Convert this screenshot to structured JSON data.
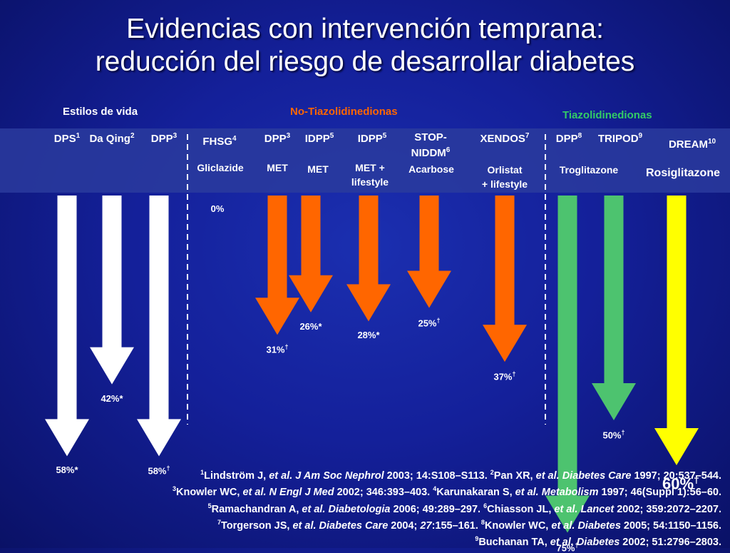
{
  "title": {
    "line1": "Evidencias con intervención temprana:",
    "line2": "reducción del riesgo de desarrollar diabetes"
  },
  "groups": {
    "lifestyle": "Estilos de vida",
    "non_tzd": "No-Tiazolidinedionas",
    "tzd": "Tiazolidinedionas"
  },
  "colors": {
    "lifestyle": "#ffffff",
    "non_tzd": "#ff6600",
    "tzd_green": "#4dc36f",
    "rosiglitazone": "#ffff00",
    "non_tzd_label": "#ff6600",
    "tzd_label": "#33cc66"
  },
  "chart_data": {
    "type": "bar",
    "orientation": "downward-arrows",
    "value_unit": "% reduction in diabetes risk",
    "studies": [
      {
        "name": "DPS",
        "sup": "1",
        "intervention": "",
        "value": 58,
        "label": "58%",
        "mark": "*",
        "color": "lifestyle"
      },
      {
        "name": "Da Qing",
        "sup": "2",
        "intervention": "",
        "value": 42,
        "label": "42%",
        "mark": "*",
        "color": "lifestyle"
      },
      {
        "name": "DPP",
        "sup": "3",
        "intervention": "",
        "value": 58,
        "label": "58%",
        "mark": "†",
        "color": "lifestyle"
      },
      {
        "name": "FHSG",
        "sup": "4",
        "intervention": "Gliclazide",
        "value": 0,
        "label": "0%",
        "mark": "",
        "color": "non_tzd"
      },
      {
        "name": "DPP",
        "sup": "3",
        "intervention": "MET",
        "value": 31,
        "label": "31%",
        "mark": "†",
        "color": "non_tzd"
      },
      {
        "name": "IDPP",
        "sup": "5",
        "intervention": "MET",
        "value": 26,
        "label": "26%",
        "mark": "*",
        "color": "non_tzd"
      },
      {
        "name": "IDPP",
        "sup": "5",
        "intervention": "MET + lifestyle",
        "value": 28,
        "label": "28%",
        "mark": "*",
        "color": "non_tzd"
      },
      {
        "name": "STOP-NIDDM",
        "sup": "6",
        "intervention": "Acarbose",
        "value": 25,
        "label": "25%",
        "mark": "†",
        "color": "non_tzd"
      },
      {
        "name": "XENDOS",
        "sup": "7",
        "intervention": "Orlistat + lifestyle",
        "value": 37,
        "label": "37%",
        "mark": "†",
        "color": "non_tzd"
      },
      {
        "name": "DPP",
        "sup": "8",
        "intervention": "Troglitazone",
        "value": 75,
        "label": "75%",
        "mark": "†",
        "color": "tzd_green"
      },
      {
        "name": "TRIPOD",
        "sup": "9",
        "intervention": "",
        "value": 50,
        "label": "50%",
        "mark": "†",
        "color": "tzd_green"
      },
      {
        "name": "DREAM",
        "sup": "10",
        "intervention": "Rosiglitazone",
        "value": 60,
        "label": "60%",
        "mark": "†",
        "color": "rosiglitazone"
      }
    ]
  },
  "references": [
    [
      {
        "t": "1",
        "s": "sup"
      },
      {
        "t": "Lindström J, "
      },
      {
        "t": "et al. J Am Soc Nephrol",
        "s": "i"
      },
      {
        "t": " 2003; 14:S108–S113. "
      },
      {
        "t": "2",
        "s": "sup"
      },
      {
        "t": "Pan XR, "
      },
      {
        "t": "et al. Diabetes Care",
        "s": "i"
      },
      {
        "t": " 1997; 20:537–544."
      }
    ],
    [
      {
        "t": "3",
        "s": "sup"
      },
      {
        "t": "Knowler WC, "
      },
      {
        "t": "et al. N Engl J Med",
        "s": "i"
      },
      {
        "t": " 2002; 346:393–403. "
      },
      {
        "t": "4",
        "s": "sup"
      },
      {
        "t": "Karunakaran S, "
      },
      {
        "t": "et al. Metabolism",
        "s": "i"
      },
      {
        "t": " 1997; 46(Suppl 1):56–60."
      }
    ],
    [
      {
        "t": "5",
        "s": "sup"
      },
      {
        "t": "Ramachandran A, "
      },
      {
        "t": "et al. Diabetologia",
        "s": "i"
      },
      {
        "t": " 2006; 49:289–297. "
      },
      {
        "t": "6",
        "s": "sup"
      },
      {
        "t": "Chiasson JL, "
      },
      {
        "t": "et al. Lancet",
        "s": "i"
      },
      {
        "t": " 2002; 359:2072–2207."
      }
    ],
    [
      {
        "t": "7",
        "s": "sup"
      },
      {
        "t": "Torgerson JS, "
      },
      {
        "t": "et al. Diabetes Care",
        "s": "i"
      },
      {
        "t": " 2004; "
      },
      {
        "t": "27",
        "s": "i"
      },
      {
        "t": ":155–161. "
      },
      {
        "t": "8",
        "s": "sup"
      },
      {
        "t": "Knowler WC, "
      },
      {
        "t": "et al. Diabetes",
        "s": "i"
      },
      {
        "t": " 2005; 54:1150–1156."
      }
    ],
    [
      {
        "t": "9",
        "s": "sup"
      },
      {
        "t": "Buchanan TA, "
      },
      {
        "t": "et al. Diabetes",
        "s": "i"
      },
      {
        "t": " 2002; 51:2796–2803."
      }
    ]
  ]
}
